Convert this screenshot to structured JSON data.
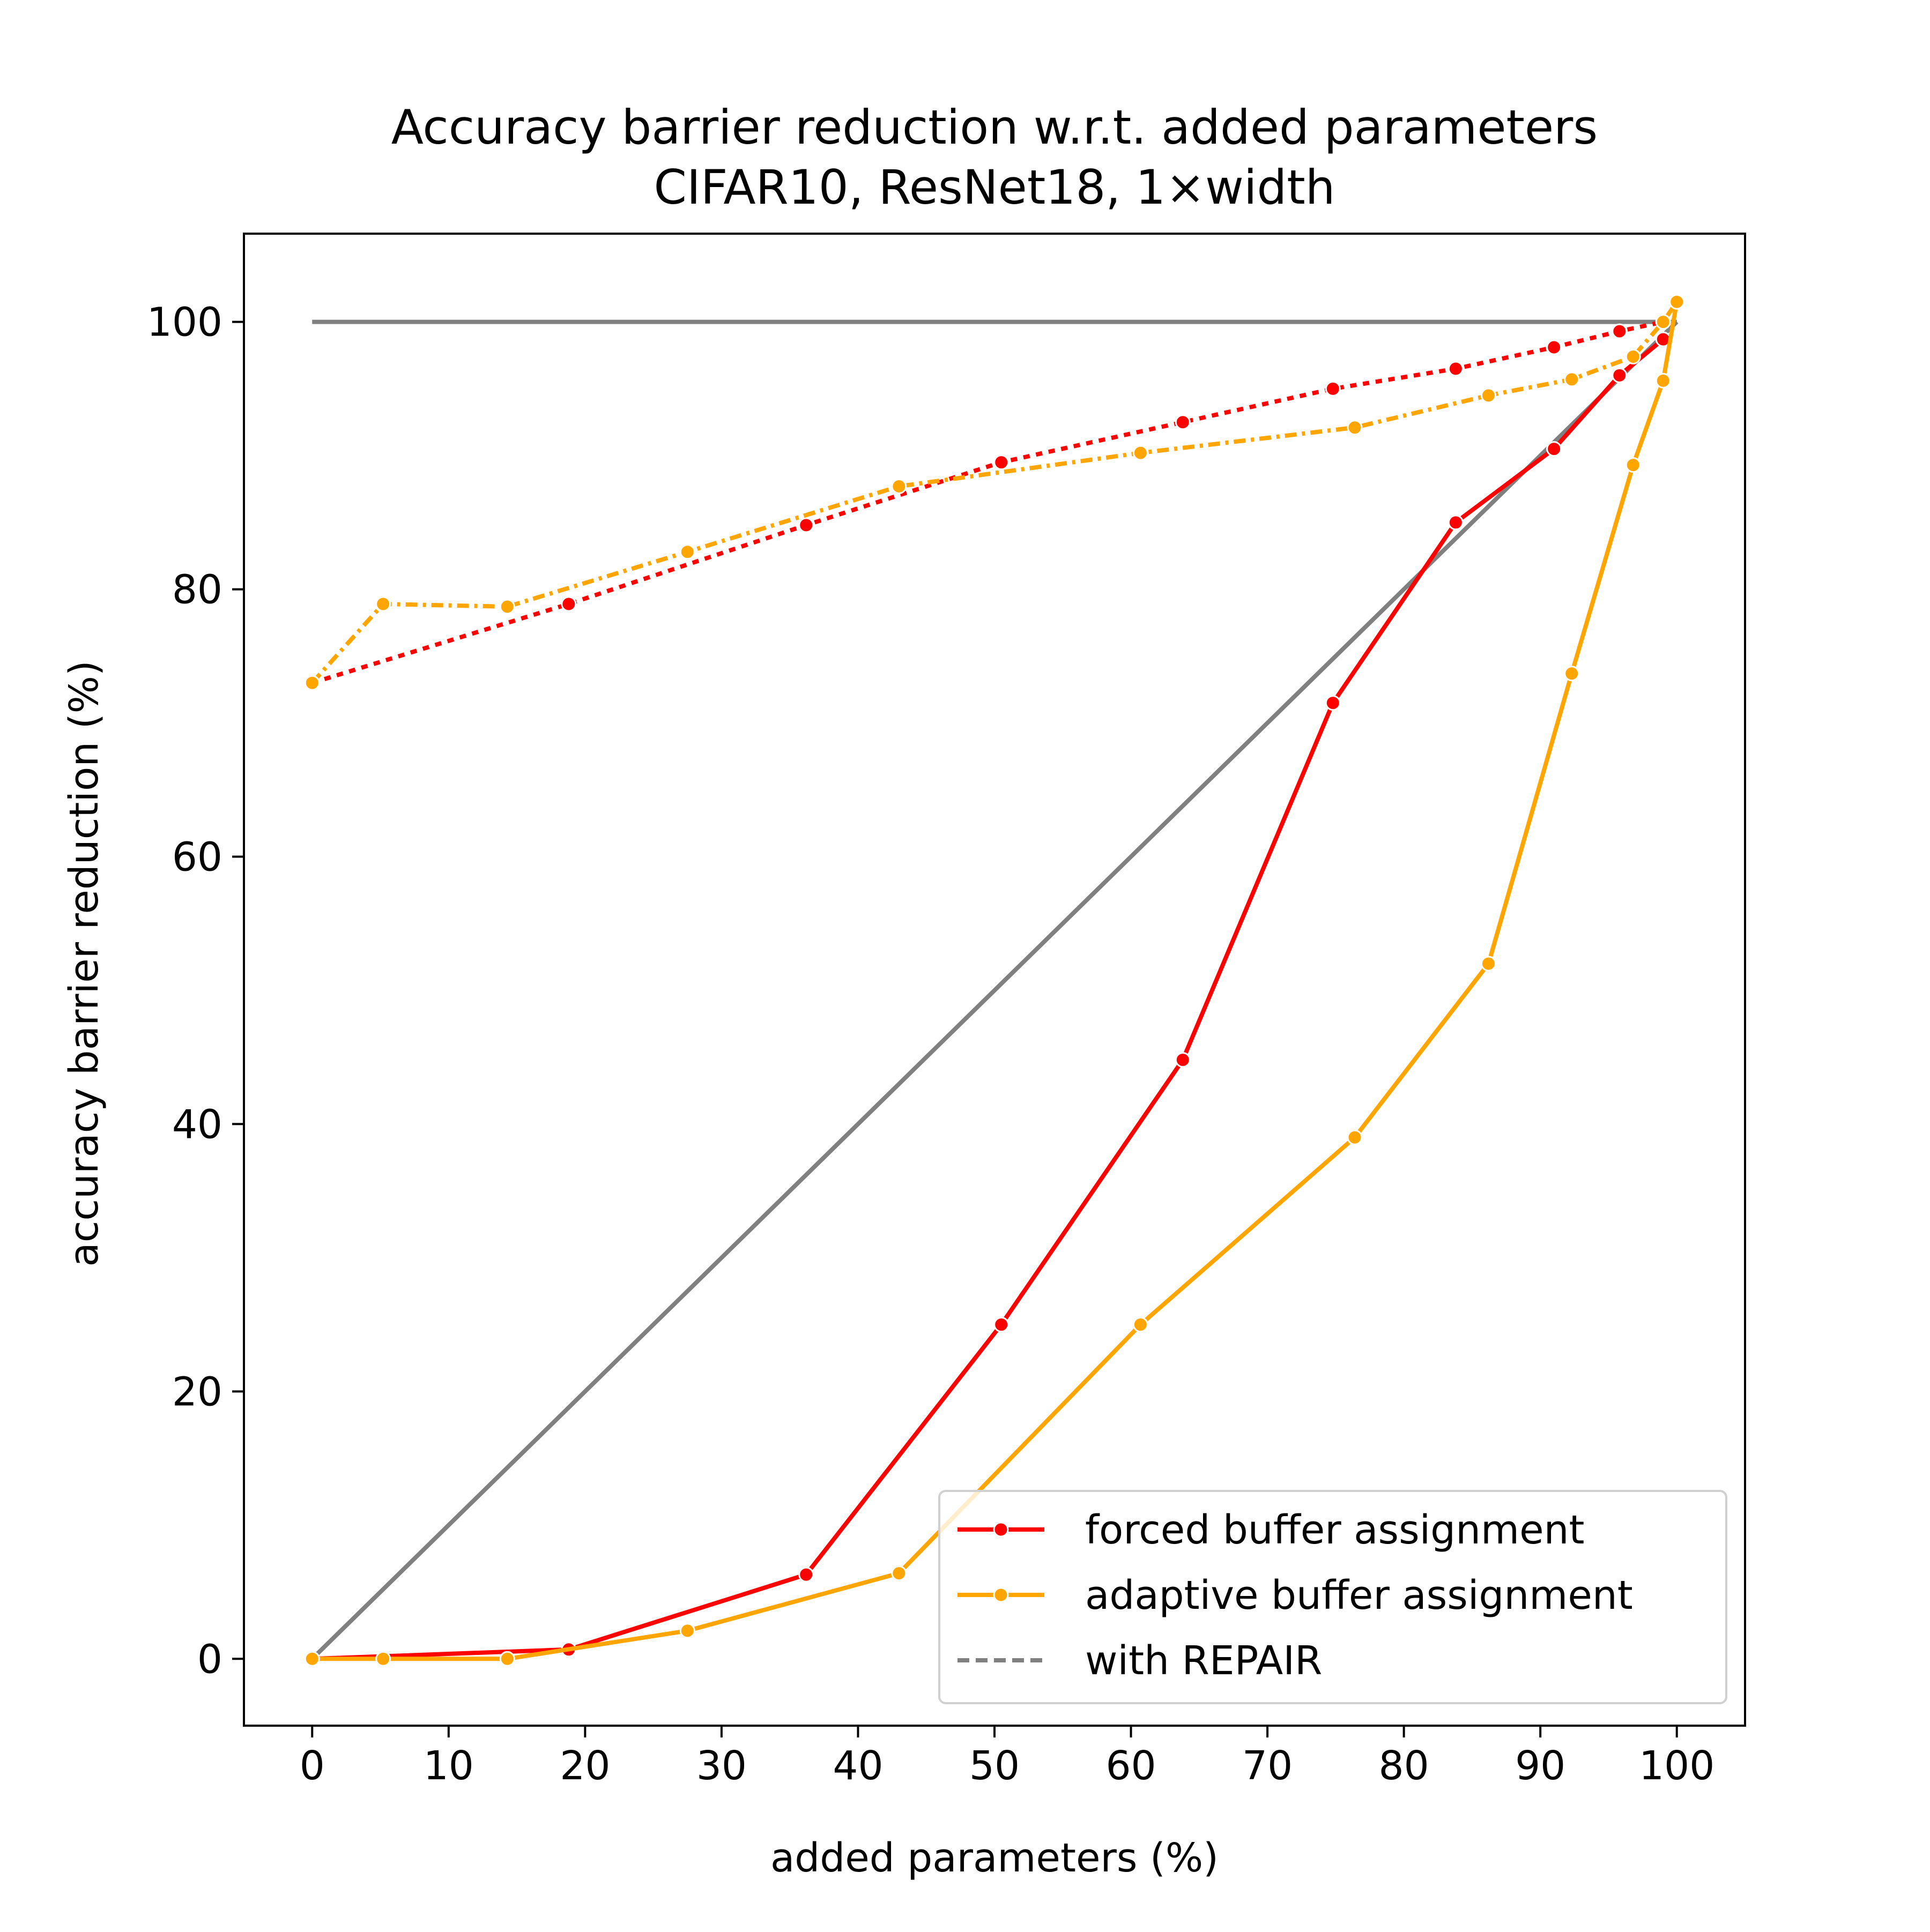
{
  "chart_data": {
    "type": "line",
    "title": "Accuracy barrier reduction w.r.t. added parameters",
    "subtitle": "CIFAR10, ResNet18, 1×width",
    "xlabel": "added parameters (%)",
    "ylabel": "accuracy barrier reduction (%)",
    "xlim": [
      -5,
      105
    ],
    "ylim": [
      -5,
      106.6
    ],
    "xticks": [
      0,
      10,
      20,
      30,
      40,
      50,
      60,
      70,
      80,
      90,
      100
    ],
    "yticks": [
      0,
      20,
      40,
      60,
      80,
      100
    ],
    "grid": false,
    "legend_position": "lower-right",
    "reference_lines": [
      {
        "x": [
          0,
          100
        ],
        "y": [
          100,
          100
        ],
        "color": "#808080",
        "style": "solid"
      },
      {
        "x": [
          0,
          100
        ],
        "y": [
          0,
          100
        ],
        "color": "#808080",
        "style": "solid"
      }
    ],
    "series": [
      {
        "name": "forced buffer assignment",
        "color": "#ff0000",
        "style": "solid",
        "marker": "circle",
        "x": [
          0,
          18.8,
          36.2,
          50.5,
          63.8,
          74.8,
          83.8,
          91,
          95.8,
          99
        ],
        "y": [
          0,
          0.7,
          6.3,
          25,
          44.8,
          71.5,
          85,
          90.5,
          96,
          98.7
        ]
      },
      {
        "name": "adaptive buffer assignment",
        "color": "#ffa500",
        "style": "solid",
        "marker": "circle",
        "x": [
          0,
          5.2,
          14.3,
          27.5,
          43,
          60.7,
          76.4,
          86.2,
          92.3,
          96.8,
          99,
          100
        ],
        "y": [
          0,
          0,
          0,
          2.1,
          6.4,
          25,
          39,
          52,
          73.7,
          89.3,
          95.6,
          101.5
        ]
      },
      {
        "name": "with REPAIR",
        "color": "#808080",
        "style": "dashed",
        "legend_only": true,
        "x": [],
        "y": []
      },
      {
        "name": "forced buffer assignment (with REPAIR)",
        "color": "#ff0000",
        "style": "dotted",
        "marker": "circle",
        "in_legend": false,
        "x": [
          0,
          18.8,
          36.2,
          50.5,
          63.8,
          74.8,
          83.8,
          91,
          95.8,
          99
        ],
        "y": [
          73,
          78.9,
          84.8,
          89.5,
          92.5,
          95,
          96.5,
          98.1,
          99.3,
          100
        ]
      },
      {
        "name": "adaptive buffer assignment (with REPAIR)",
        "color": "#ffa500",
        "style": "dashdot",
        "marker": "circle",
        "in_legend": false,
        "x": [
          0,
          5.2,
          14.3,
          27.5,
          43,
          60.7,
          76.4,
          86.2,
          92.3,
          96.8,
          99,
          100
        ],
        "y": [
          73,
          78.9,
          78.7,
          82.8,
          87.7,
          90.2,
          92.1,
          94.5,
          95.7,
          97.4,
          100,
          101.5
        ]
      }
    ]
  }
}
